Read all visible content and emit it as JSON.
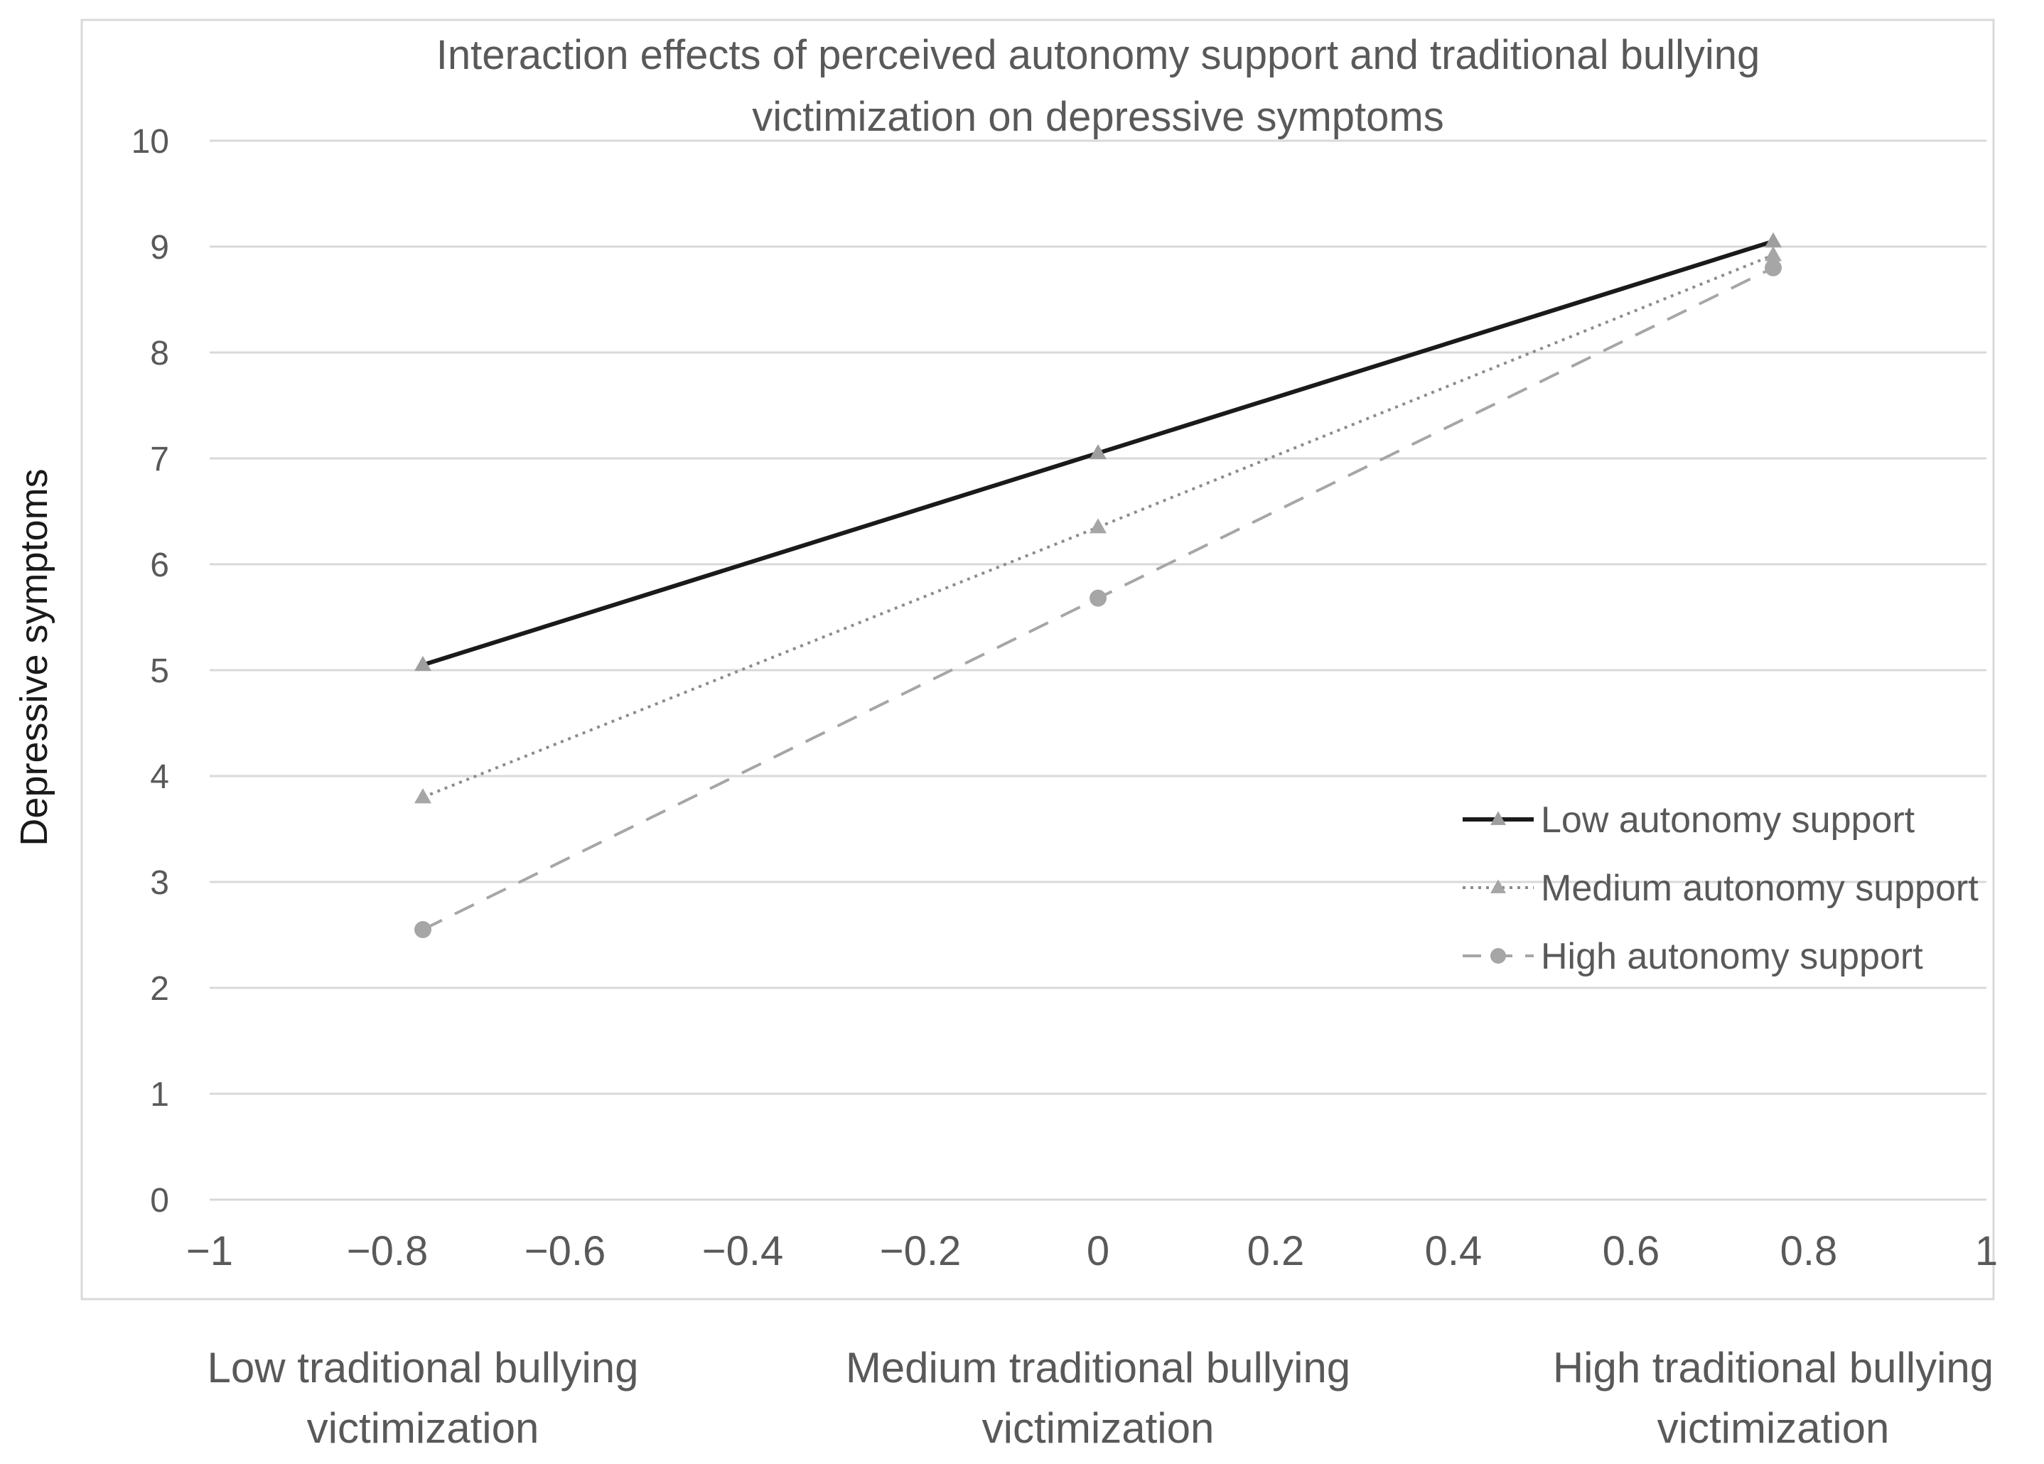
{
  "chart_data": {
    "type": "line",
    "title_lines": [
      "Interaction effects of perceived autonomy support and traditional bullying",
      "victimization on depressive symptoms"
    ],
    "ylabel": "Depressive symptoms",
    "ylim": [
      0,
      10
    ],
    "yticks": [
      0,
      1,
      2,
      3,
      4,
      5,
      6,
      7,
      8,
      9,
      10
    ],
    "xlim": [
      -1,
      1
    ],
    "xticks": [
      {
        "value": -1,
        "label": "−1"
      },
      {
        "value": -0.8,
        "label": "−0.8"
      },
      {
        "value": -0.6,
        "label": "−0.6"
      },
      {
        "value": -0.4,
        "label": "−0.4"
      },
      {
        "value": -0.2,
        "label": "−0.2"
      },
      {
        "value": 0,
        "label": "0"
      },
      {
        "value": 0.2,
        "label": "0.2"
      },
      {
        "value": 0.4,
        "label": "0.4"
      },
      {
        "value": 0.6,
        "label": "0.6"
      },
      {
        "value": 0.8,
        "label": "0.8"
      },
      {
        "value": 1,
        "label": "1"
      }
    ],
    "x": [
      -0.76,
      0,
      0.76
    ],
    "categories": [
      [
        "Low traditional bullying",
        "victimization"
      ],
      [
        "Medium traditional bullying",
        "victimization"
      ],
      [
        "High traditional bullying",
        "victimization"
      ]
    ],
    "grid": true,
    "legend_position": "right",
    "series": [
      {
        "name": "Low autonomy support",
        "values": [
          5.05,
          7.05,
          9.05
        ],
        "color": "#1a1a1a",
        "marker": "triangle",
        "marker_color": "#9e9e9e",
        "dash": "solid"
      },
      {
        "name": "Medium autonomy support",
        "values": [
          3.8,
          6.35,
          8.92
        ],
        "color": "#8c8c8c",
        "marker": "triangle",
        "marker_color": "#a6a6a6",
        "dash": "dotted"
      },
      {
        "name": "High autonomy support",
        "values": [
          2.55,
          5.68,
          8.8
        ],
        "color": "#a6a6a6",
        "marker": "circle",
        "marker_color": "#a6a6a6",
        "dash": "dashed"
      }
    ]
  }
}
